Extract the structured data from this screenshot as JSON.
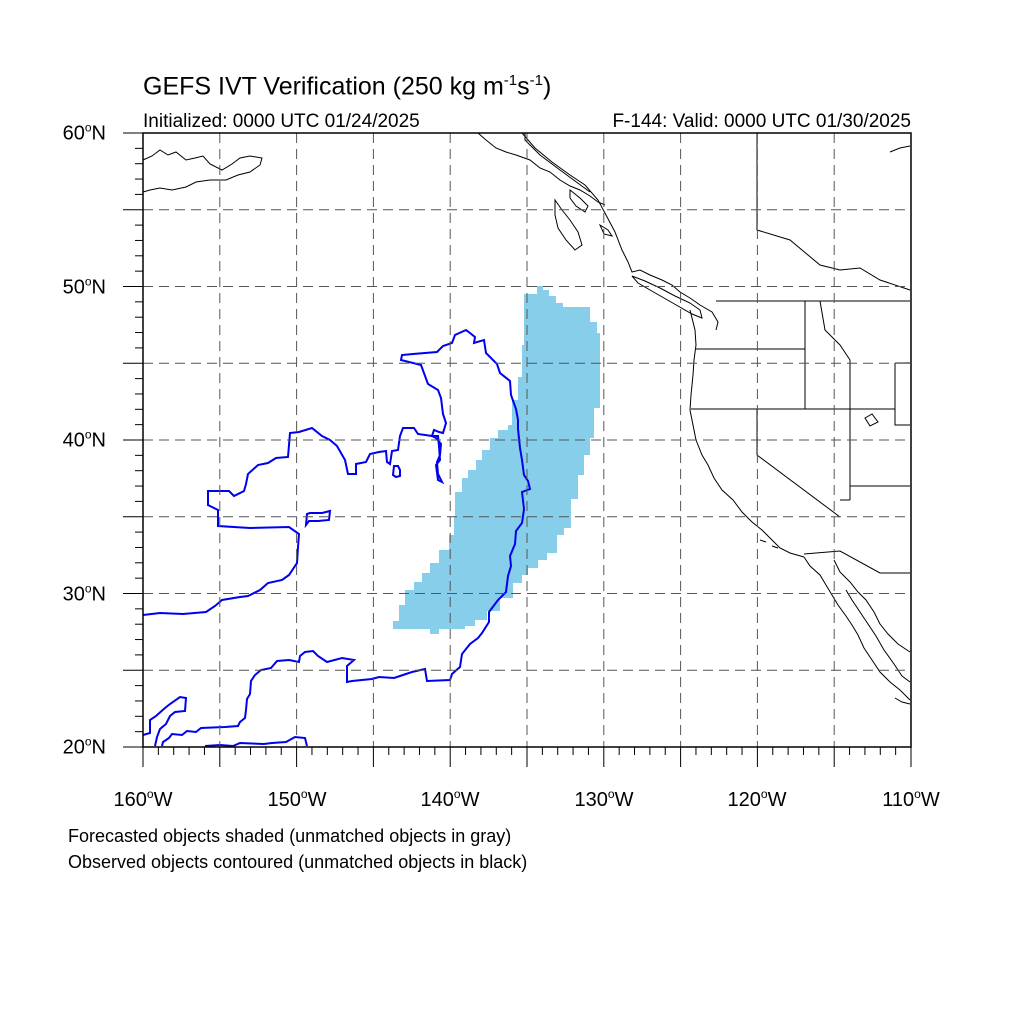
{
  "title": {
    "main": "GEFS IVT Verification (250 kg m",
    "exp1": "-1",
    "mid": "s",
    "exp2": "-1",
    "close": ")"
  },
  "initialized": "Initialized: 0000 UTC 01/24/2025",
  "valid": "F-144: Valid: 0000 UTC 01/30/2025",
  "lat_labels": [
    {
      "num": "60",
      "suf": "N"
    },
    {
      "num": "50",
      "suf": "N"
    },
    {
      "num": "40",
      "suf": "N"
    },
    {
      "num": "30",
      "suf": "N"
    },
    {
      "num": "20",
      "suf": "N"
    }
  ],
  "lon_labels": [
    {
      "num": "160",
      "suf": "W"
    },
    {
      "num": "150",
      "suf": "W"
    },
    {
      "num": "140",
      "suf": "W"
    },
    {
      "num": "130",
      "suf": "W"
    },
    {
      "num": "120",
      "suf": "W"
    },
    {
      "num": "110",
      "suf": "W"
    }
  ],
  "map_extent": {
    "lon": [
      -160,
      -110
    ],
    "lat": [
      20,
      60
    ]
  },
  "notes": [
    "Forecasted objects shaded (unmatched objects in gray)",
    "Observed objects contoured (unmatched objects in black)"
  ],
  "colors": {
    "forecast_fill": "#87ceeb",
    "observed_contour": "#0000ee",
    "coastline": "#000000",
    "grid": "#555555"
  }
}
